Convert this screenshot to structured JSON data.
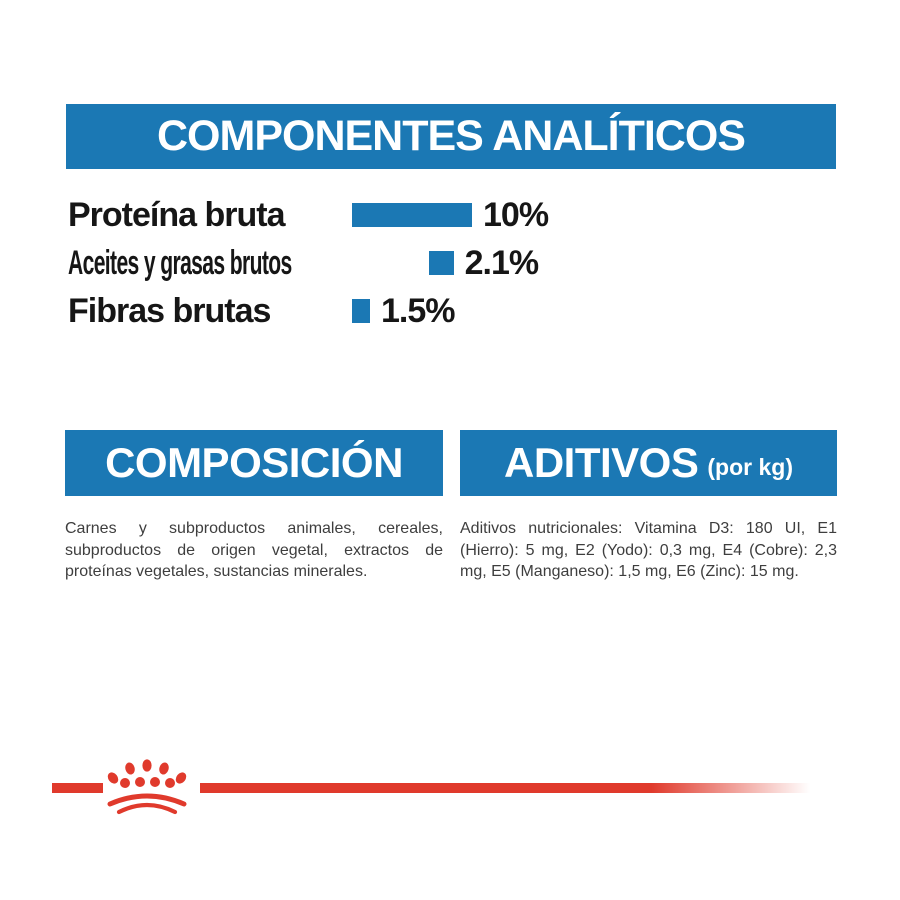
{
  "colors": {
    "blue": "#1B78B4",
    "red": "#E03A2C",
    "ink": "#161616",
    "gray": "#3E3E3E"
  },
  "analytical": {
    "title": "COMPONENTES ANALÍTICOS"
  },
  "chart_data": {
    "type": "bar",
    "orientation": "horizontal",
    "title": "COMPONENTES ANALÍTICOS",
    "categories": [
      "Proteína bruta",
      "Aceites y grasas brutos",
      "Fibras brutas"
    ],
    "values": [
      10,
      2.1,
      1.5
    ],
    "value_labels": [
      "10%",
      "2.1%",
      "1.5%"
    ],
    "unit": "percent",
    "bar_color": "#1B78B4",
    "xlim": [
      0,
      10
    ],
    "grid": false,
    "legend": false
  },
  "composition": {
    "title": "COMPOSICIÓN",
    "body": "Carnes y subproductos animales, cereales, subproductos de origen vegetal, extractos de proteínas vegetales, sustancias minerales."
  },
  "additives": {
    "title": "ADITIVOS",
    "title_suffix": "(por kg)",
    "body": "Aditivos nutricionales: Vitamina D3: 180 UI, E1 (Hierro): 5 mg, E2 (Yodo): 0,3 mg, E4 (Cobre): 2,3 mg, E5 (Manganeso): 1,5 mg, E6 (Zinc): 15 mg."
  },
  "footer": {
    "logo": "royal-canin-crown"
  }
}
